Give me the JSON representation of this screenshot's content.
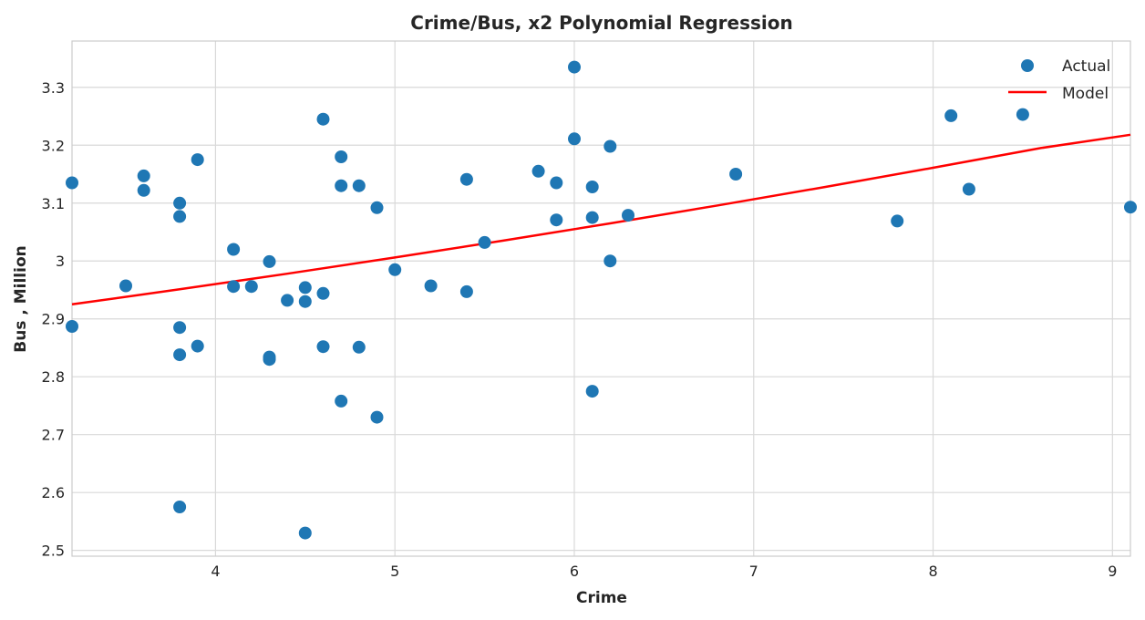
{
  "chart_data": {
    "type": "scatter",
    "title": "Crime/Bus, x2 Polynomial Regression",
    "xlabel": "Crime",
    "ylabel": "Bus , Million",
    "xlim": [
      3.2,
      9.1
    ],
    "ylim": [
      2.49,
      3.38
    ],
    "xticks": [
      4,
      5,
      6,
      7,
      8,
      9
    ],
    "yticks": [
      2.5,
      2.6,
      2.7,
      2.8,
      2.9,
      3.0,
      3.1,
      3.2,
      3.3
    ],
    "ytick_labels": [
      "2.5",
      "2.6",
      "2.7",
      "2.8",
      "2.9",
      "3",
      "3.1",
      "3.2",
      "3.3"
    ],
    "grid": true,
    "legend": {
      "position": "top-right",
      "entries": [
        "Actual",
        "Model"
      ]
    },
    "series": [
      {
        "name": "Actual",
        "kind": "scatter",
        "color": "#1f77b4",
        "points": [
          [
            3.2,
            3.135
          ],
          [
            3.2,
            2.887
          ],
          [
            3.5,
            2.957
          ],
          [
            3.6,
            3.147
          ],
          [
            3.6,
            3.122
          ],
          [
            3.8,
            3.1
          ],
          [
            3.8,
            3.077
          ],
          [
            3.8,
            2.885
          ],
          [
            3.8,
            2.838
          ],
          [
            3.8,
            2.575
          ],
          [
            3.9,
            3.175
          ],
          [
            3.9,
            2.853
          ],
          [
            4.1,
            3.02
          ],
          [
            4.1,
            2.956
          ],
          [
            4.2,
            2.956
          ],
          [
            4.3,
            2.999
          ],
          [
            4.3,
            2.834
          ],
          [
            4.3,
            2.83
          ],
          [
            4.4,
            2.932
          ],
          [
            4.5,
            2.954
          ],
          [
            4.5,
            2.93
          ],
          [
            4.5,
            2.53
          ],
          [
            4.6,
            3.245
          ],
          [
            4.6,
            2.944
          ],
          [
            4.6,
            2.852
          ],
          [
            4.7,
            3.18
          ],
          [
            4.7,
            3.13
          ],
          [
            4.7,
            2.758
          ],
          [
            4.8,
            3.13
          ],
          [
            4.8,
            2.851
          ],
          [
            4.9,
            3.092
          ],
          [
            4.9,
            2.73
          ],
          [
            5.0,
            2.985
          ],
          [
            5.2,
            2.957
          ],
          [
            5.4,
            3.141
          ],
          [
            5.4,
            2.947
          ],
          [
            5.5,
            3.032
          ],
          [
            5.8,
            3.155
          ],
          [
            5.9,
            3.135
          ],
          [
            5.9,
            3.071
          ],
          [
            6.0,
            3.335
          ],
          [
            6.0,
            3.211
          ],
          [
            6.1,
            3.128
          ],
          [
            6.1,
            3.075
          ],
          [
            6.1,
            2.775
          ],
          [
            6.2,
            3.198
          ],
          [
            6.2,
            3.0
          ],
          [
            6.3,
            3.079
          ],
          [
            6.9,
            3.15
          ],
          [
            7.8,
            3.069
          ],
          [
            8.1,
            3.251
          ],
          [
            8.2,
            3.124
          ],
          [
            8.5,
            3.253
          ],
          [
            9.1,
            3.093
          ]
        ]
      },
      {
        "name": "Model",
        "kind": "line",
        "color": "#ff0000",
        "x": [
          3.2,
          3.8,
          4.4,
          5.0,
          5.6,
          6.2,
          6.8,
          7.4,
          8.0,
          8.6,
          9.1
        ],
        "y": [
          2.925,
          2.951,
          2.978,
          3.006,
          3.035,
          3.065,
          3.096,
          3.128,
          3.161,
          3.195,
          3.218
        ]
      }
    ]
  }
}
